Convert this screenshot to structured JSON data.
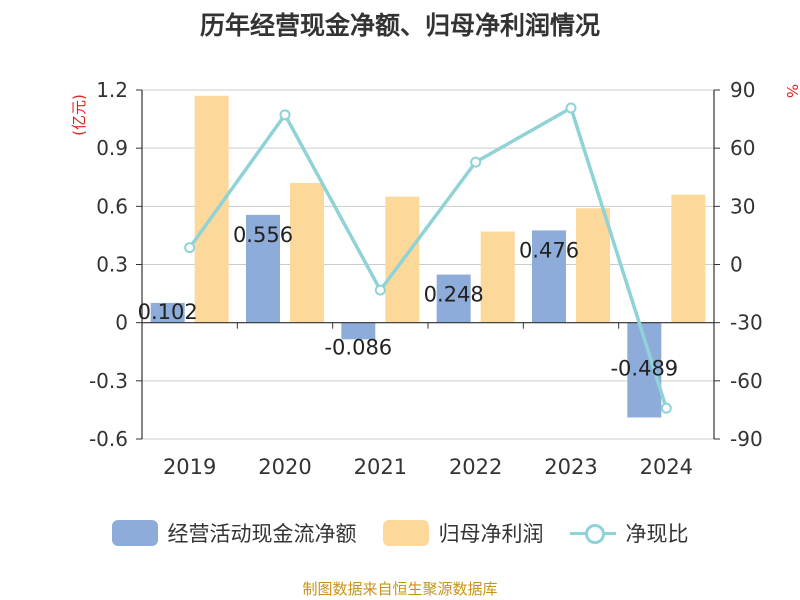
{
  "chart_data": {
    "type": "bar",
    "title": "历年经营现金净额、归母净利润情况",
    "categories": [
      "2019",
      "2020",
      "2021",
      "2022",
      "2023",
      "2024"
    ],
    "series": [
      {
        "name": "经营活动现金流净额",
        "type": "bar",
        "axis": "left",
        "color": "#8eacd9",
        "values": [
          0.102,
          0.556,
          -0.086,
          0.248,
          0.476,
          -0.489
        ],
        "labels": [
          "0.102",
          "0.556",
          "-0.086",
          "0.248",
          "0.476",
          "-0.489"
        ]
      },
      {
        "name": "归母净利润",
        "type": "bar",
        "axis": "left",
        "color": "#fdd89b",
        "values": [
          1.17,
          0.72,
          0.65,
          0.47,
          0.59,
          0.66
        ]
      },
      {
        "name": "净现比",
        "type": "line",
        "axis": "right",
        "color": "#8fd3d6",
        "values": [
          8.7,
          77.2,
          -13.2,
          52.8,
          80.7,
          -74.1
        ]
      }
    ],
    "ylabel_left": "(亿元)",
    "ylabel_right": "%",
    "ylim_left": [
      -0.6,
      1.2
    ],
    "yticks_left": [
      "1.2",
      "0.9",
      "0.6",
      "0.3",
      "0",
      "-0.3",
      "-0.6"
    ],
    "ylim_right": [
      -90,
      90
    ],
    "yticks_right": [
      "90",
      "60",
      "30",
      "0",
      "-30",
      "-60",
      "-90"
    ],
    "grid": true,
    "legend_position": "bottom"
  },
  "legend": {
    "item1": "经营活动现金流净额",
    "item2": "归母净利润",
    "item3": "净现比"
  },
  "source": "制图数据来自恒生聚源数据库"
}
